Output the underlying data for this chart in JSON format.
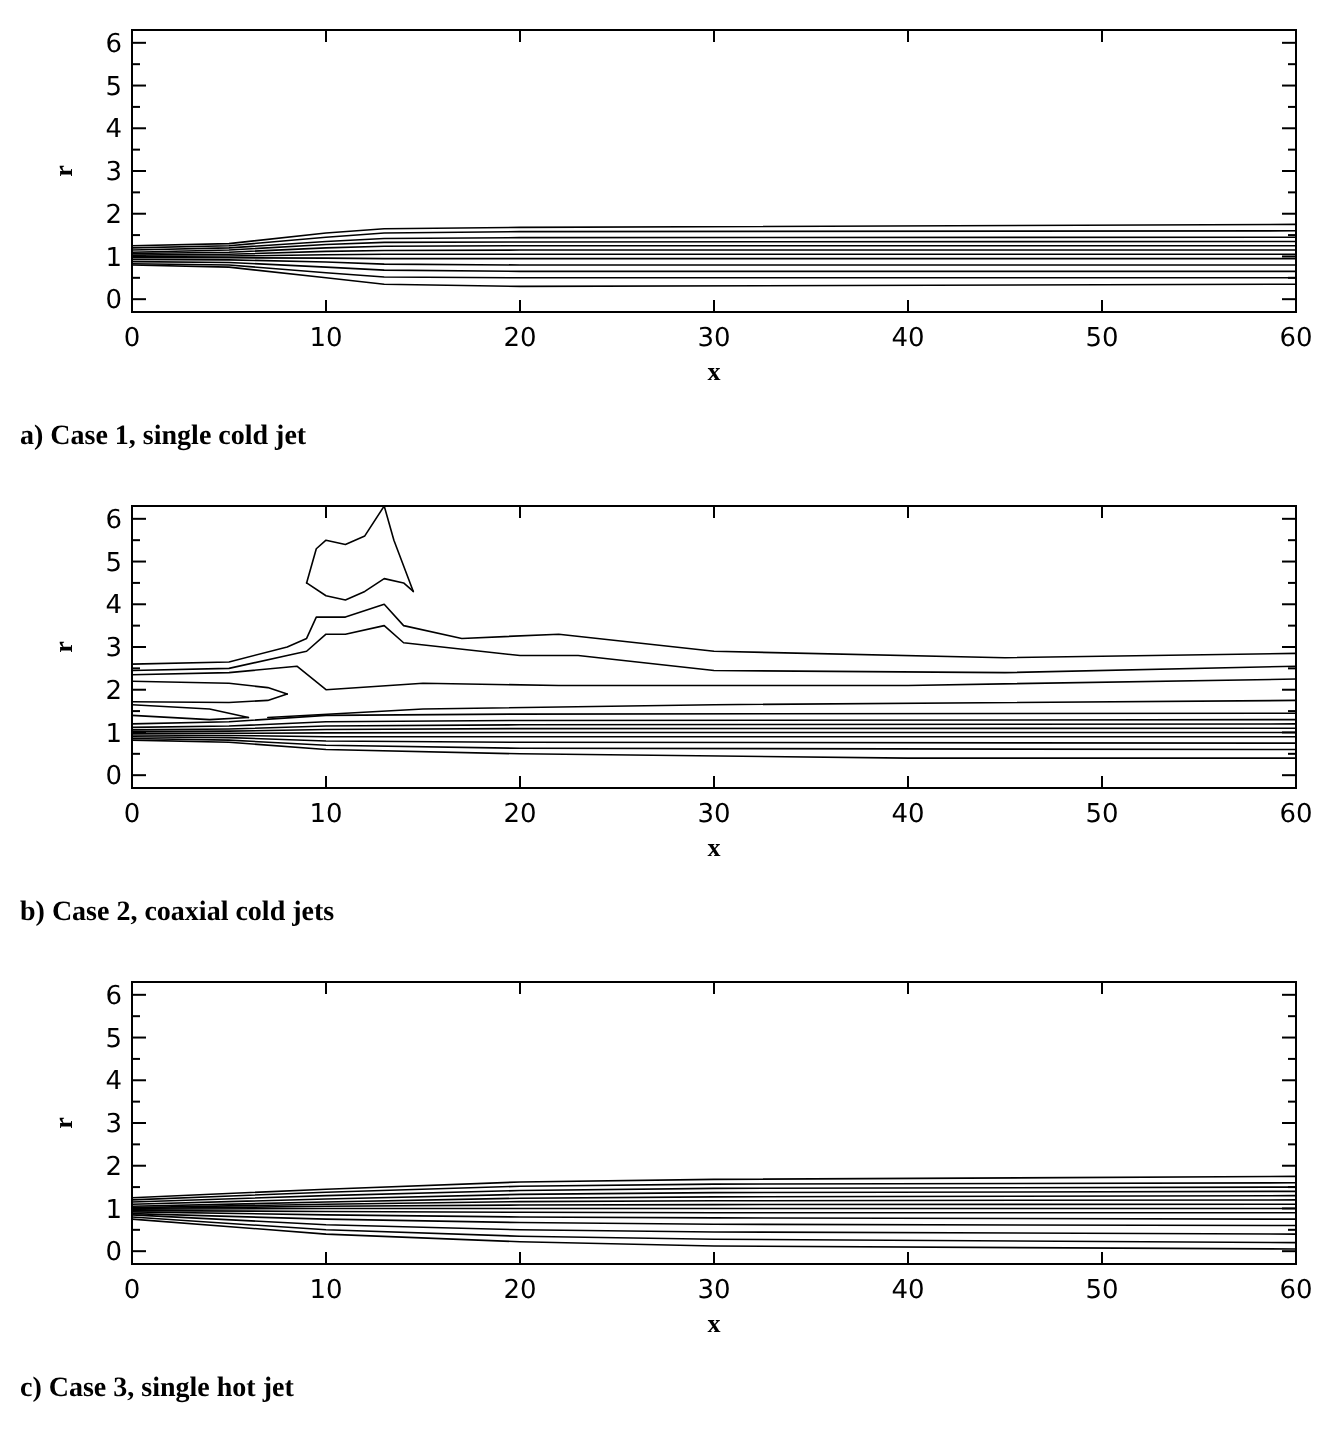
{
  "chart_data": [
    {
      "type": "line",
      "title": "a) Case 1, single cold jet",
      "xlabel": "x",
      "ylabel": "r",
      "xlim": [
        0,
        60
      ],
      "ylim": [
        -0.3,
        6.3
      ],
      "xticks": [
        0,
        10,
        20,
        30,
        40,
        50,
        60
      ],
      "yticks": [
        0,
        {
          "value": 0.5,
          "label": null
        },
        1,
        {
          "value": 1.5,
          "label": null
        },
        2,
        {
          "value": 2.5,
          "label": null
        },
        3,
        {
          "value": 3.5,
          "label": null
        },
        4,
        {
          "value": 4.5,
          "label": null
        },
        5,
        {
          "value": 5.5,
          "label": null
        },
        6
      ],
      "line_style": "solid",
      "marker": "none",
      "grid": false,
      "series": [
        {
          "color": "#000000",
          "x": [
            0,
            5,
            10,
            13,
            20,
            60
          ],
          "values": [
            1.25,
            1.3,
            1.55,
            1.65,
            1.68,
            1.75
          ]
        },
        {
          "color": "#000000",
          "x": [
            0,
            5,
            10,
            13,
            20,
            60
          ],
          "values": [
            1.2,
            1.25,
            1.45,
            1.55,
            1.58,
            1.6
          ]
        },
        {
          "color": "#000000",
          "x": [
            0,
            5,
            10,
            13,
            20,
            60
          ],
          "values": [
            1.15,
            1.2,
            1.35,
            1.42,
            1.44,
            1.45
          ]
        },
        {
          "color": "#000000",
          "x": [
            0,
            5,
            10,
            13,
            20,
            60
          ],
          "values": [
            1.1,
            1.15,
            1.28,
            1.33,
            1.34,
            1.35
          ]
        },
        {
          "color": "#000000",
          "x": [
            0,
            5,
            10,
            13,
            20,
            60
          ],
          "values": [
            1.07,
            1.1,
            1.2,
            1.24,
            1.25,
            1.25
          ]
        },
        {
          "color": "#000000",
          "x": [
            0,
            5,
            10,
            13,
            20,
            60
          ],
          "values": [
            1.03,
            1.05,
            1.12,
            1.14,
            1.15,
            1.15
          ]
        },
        {
          "color": "#000000",
          "x": [
            0,
            5,
            10,
            13,
            20,
            60
          ],
          "values": [
            1.0,
            1.01,
            1.04,
            1.05,
            1.05,
            1.05
          ]
        },
        {
          "color": "#000000",
          "x": [
            0,
            5,
            10,
            13,
            20,
            60
          ],
          "values": [
            0.97,
            0.97,
            0.96,
            0.95,
            0.95,
            0.95
          ]
        },
        {
          "color": "#000000",
          "x": [
            0,
            5,
            10,
            13,
            20,
            60
          ],
          "values": [
            0.93,
            0.92,
            0.87,
            0.82,
            0.8,
            0.8
          ]
        },
        {
          "color": "#000000",
          "x": [
            0,
            5,
            10,
            13,
            20,
            60
          ],
          "values": [
            0.88,
            0.86,
            0.75,
            0.68,
            0.65,
            0.65
          ]
        },
        {
          "color": "#000000",
          "x": [
            0,
            5,
            10,
            13,
            20,
            60
          ],
          "values": [
            0.83,
            0.8,
            0.62,
            0.52,
            0.5,
            0.5
          ]
        },
        {
          "color": "#000000",
          "x": [
            0,
            5,
            10,
            13,
            20,
            60
          ],
          "values": [
            0.8,
            0.75,
            0.5,
            0.35,
            0.3,
            0.35
          ]
        }
      ]
    },
    {
      "type": "line",
      "title": "b) Case 2, coaxial cold jets",
      "xlabel": "x",
      "ylabel": "r",
      "xlim": [
        0,
        60
      ],
      "ylim": [
        -0.3,
        6.3
      ],
      "xticks": [
        0,
        10,
        20,
        30,
        40,
        50,
        60
      ],
      "yticks": [
        0,
        {
          "value": 0.5,
          "label": null
        },
        1,
        {
          "value": 1.5,
          "label": null
        },
        2,
        {
          "value": 2.5,
          "label": null
        },
        3,
        {
          "value": 3.5,
          "label": null
        },
        4,
        {
          "value": 4.5,
          "label": null
        },
        5,
        {
          "value": 5.5,
          "label": null
        },
        6
      ],
      "line_style": "solid",
      "marker": "none",
      "grid": false,
      "series": [
        {
          "color": "#000000",
          "x": [
            0,
            5,
            8,
            9,
            9.5,
            11,
            13,
            14,
            17,
            22,
            30,
            45,
            60
          ],
          "values": [
            2.6,
            2.65,
            3.0,
            3.2,
            3.7,
            3.7,
            4.0,
            3.5,
            3.2,
            3.3,
            2.9,
            2.75,
            2.85
          ]
        },
        {
          "color": "#000000",
          "x": [
            0,
            5,
            8,
            9,
            10,
            11,
            13,
            14,
            20,
            23,
            30,
            45,
            60
          ],
          "values": [
            2.45,
            2.5,
            2.8,
            2.9,
            3.3,
            3.3,
            3.5,
            3.1,
            2.8,
            2.8,
            2.45,
            2.4,
            2.55
          ]
        },
        {
          "color": "#000000",
          "x": [
            0,
            5,
            8.5,
            10,
            15,
            22,
            40,
            60
          ],
          "values": [
            2.35,
            2.4,
            2.55,
            2.0,
            2.15,
            2.1,
            2.1,
            2.25
          ]
        },
        {
          "color": "#000000",
          "x": [
            0,
            5,
            7,
            8
          ],
          "values": [
            2.2,
            2.15,
            2.05,
            1.9
          ]
        },
        {
          "color": "#000000",
          "x": [
            0,
            5,
            7,
            8
          ],
          "values": [
            1.72,
            1.7,
            1.75,
            1.9
          ]
        },
        {
          "color": "#000000",
          "x": [
            0,
            4,
            6
          ],
          "values": [
            1.65,
            1.55,
            1.35
          ]
        },
        {
          "color": "#000000",
          "x": [
            0,
            4,
            6
          ],
          "values": [
            1.4,
            1.3,
            1.35
          ]
        },
        {
          "color": "#000000",
          "x": [
            7,
            15,
            30,
            60
          ],
          "values": [
            1.35,
            1.55,
            1.65,
            1.75
          ]
        },
        {
          "color": "#000000",
          "x": [
            9,
            9.5,
            10,
            11,
            12,
            13,
            13.5,
            14.5
          ],
          "values": [
            4.5,
            5.3,
            5.5,
            5.4,
            5.6,
            6.3,
            5.5,
            4.3
          ]
        },
        {
          "color": "#000000",
          "x": [
            9,
            10,
            11,
            12,
            13,
            14,
            14.5
          ],
          "values": [
            4.5,
            4.2,
            4.1,
            4.3,
            4.6,
            4.5,
            4.3
          ]
        },
        {
          "color": "#000000",
          "x": [
            0,
            5,
            10,
            20,
            60
          ],
          "values": [
            1.2,
            1.25,
            1.4,
            1.43,
            1.45
          ]
        },
        {
          "color": "#000000",
          "x": [
            0,
            5,
            10,
            20,
            60
          ],
          "values": [
            1.12,
            1.15,
            1.25,
            1.28,
            1.3
          ]
        },
        {
          "color": "#000000",
          "x": [
            0,
            5,
            10,
            20,
            60
          ],
          "values": [
            1.06,
            1.08,
            1.15,
            1.18,
            1.2
          ]
        },
        {
          "color": "#000000",
          "x": [
            0,
            5,
            10,
            20,
            60
          ],
          "values": [
            1.02,
            1.03,
            1.07,
            1.09,
            1.1
          ]
        },
        {
          "color": "#000000",
          "x": [
            0,
            5,
            10,
            20,
            60
          ],
          "values": [
            0.98,
            0.98,
            0.99,
            1.0,
            1.0
          ]
        },
        {
          "color": "#000000",
          "x": [
            0,
            5,
            10,
            20,
            60
          ],
          "values": [
            0.94,
            0.93,
            0.9,
            0.9,
            0.9
          ]
        },
        {
          "color": "#000000",
          "x": [
            0,
            5,
            10,
            20,
            60
          ],
          "values": [
            0.9,
            0.88,
            0.8,
            0.77,
            0.75
          ]
        },
        {
          "color": "#000000",
          "x": [
            0,
            5,
            10,
            20,
            60
          ],
          "values": [
            0.86,
            0.82,
            0.7,
            0.63,
            0.6
          ]
        },
        {
          "color": "#000000",
          "x": [
            0,
            5,
            10,
            20,
            40,
            60
          ],
          "values": [
            0.82,
            0.77,
            0.6,
            0.5,
            0.4,
            0.4
          ]
        }
      ]
    },
    {
      "type": "line",
      "title": "c) Case 3, single hot jet",
      "xlabel": "x",
      "ylabel": "r",
      "xlim": [
        0,
        60
      ],
      "ylim": [
        -0.3,
        6.3
      ],
      "xticks": [
        0,
        10,
        20,
        30,
        40,
        50,
        60
      ],
      "yticks": [
        0,
        {
          "value": 0.5,
          "label": null
        },
        1,
        {
          "value": 1.5,
          "label": null
        },
        2,
        {
          "value": 2.5,
          "label": null
        },
        3,
        {
          "value": 3.5,
          "label": null
        },
        4,
        {
          "value": 4.5,
          "label": null
        },
        5,
        {
          "value": 5.5,
          "label": null
        },
        6
      ],
      "line_style": "solid",
      "marker": "none",
      "grid": false,
      "series": [
        {
          "color": "#000000",
          "x": [
            0,
            10,
            20,
            30,
            60
          ],
          "values": [
            1.25,
            1.45,
            1.62,
            1.68,
            1.75
          ]
        },
        {
          "color": "#000000",
          "x": [
            0,
            10,
            20,
            30,
            60
          ],
          "values": [
            1.2,
            1.38,
            1.52,
            1.57,
            1.6
          ]
        },
        {
          "color": "#000000",
          "x": [
            0,
            10,
            20,
            30,
            60
          ],
          "values": [
            1.15,
            1.3,
            1.42,
            1.47,
            1.5
          ]
        },
        {
          "color": "#000000",
          "x": [
            0,
            10,
            20,
            30,
            60
          ],
          "values": [
            1.1,
            1.22,
            1.33,
            1.37,
            1.4
          ]
        },
        {
          "color": "#000000",
          "x": [
            0,
            10,
            20,
            30,
            60
          ],
          "values": [
            1.05,
            1.15,
            1.24,
            1.27,
            1.3
          ]
        },
        {
          "color": "#000000",
          "x": [
            0,
            10,
            20,
            30,
            60
          ],
          "values": [
            1.02,
            1.1,
            1.16,
            1.18,
            1.2
          ]
        },
        {
          "color": "#000000",
          "x": [
            0,
            10,
            20,
            30,
            60
          ],
          "values": [
            1.0,
            1.05,
            1.08,
            1.09,
            1.1
          ]
        },
        {
          "color": "#000000",
          "x": [
            0,
            10,
            20,
            30,
            60
          ],
          "values": [
            0.98,
            1.0,
            1.0,
            1.0,
            1.0
          ]
        },
        {
          "color": "#000000",
          "x": [
            0,
            10,
            20,
            30,
            60
          ],
          "values": [
            0.95,
            0.93,
            0.91,
            0.9,
            0.9
          ]
        },
        {
          "color": "#000000",
          "x": [
            0,
            10,
            20,
            30,
            60
          ],
          "values": [
            0.92,
            0.85,
            0.8,
            0.78,
            0.75
          ]
        },
        {
          "color": "#000000",
          "x": [
            0,
            10,
            20,
            30,
            60
          ],
          "values": [
            0.88,
            0.75,
            0.67,
            0.63,
            0.6
          ]
        },
        {
          "color": "#000000",
          "x": [
            0,
            10,
            20,
            30,
            60
          ],
          "values": [
            0.85,
            0.62,
            0.5,
            0.45,
            0.4
          ]
        },
        {
          "color": "#000000",
          "x": [
            0,
            10,
            20,
            30,
            60
          ],
          "values": [
            0.8,
            0.5,
            0.35,
            0.28,
            0.2
          ]
        },
        {
          "color": "#000000",
          "x": [
            0,
            10,
            20,
            30,
            60
          ],
          "values": [
            0.75,
            0.4,
            0.22,
            0.12,
            0.05
          ]
        }
      ]
    }
  ]
}
